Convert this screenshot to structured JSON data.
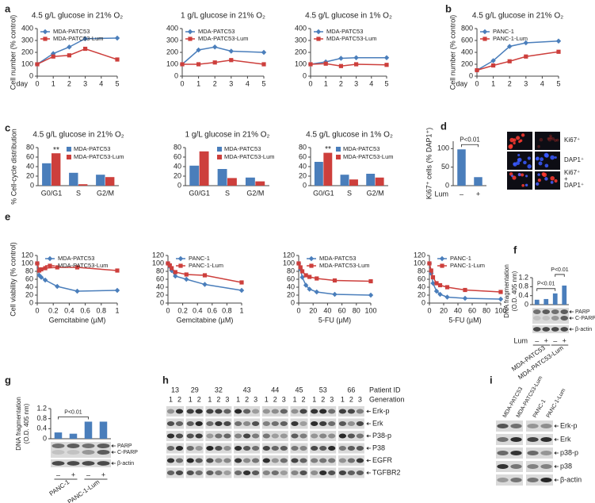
{
  "chart_data": [
    {
      "type": "line",
      "title": "4.5 g/L glucose in 21% O₂",
      "y_label": "Cell number (% control)",
      "x_label": "day",
      "x": [
        0,
        1,
        2,
        3,
        5
      ],
      "xlim": [
        0,
        5
      ],
      "xticks": [
        0,
        1,
        2,
        3,
        4,
        5
      ],
      "ylim": [
        0,
        400
      ],
      "yticks": [
        0,
        100,
        200,
        300,
        400
      ],
      "legend": "upper left",
      "series": [
        {
          "name": "MDA-PATC53",
          "color": "#4a7ebb",
          "values": [
            100,
            190,
            245,
            315,
            320
          ]
        },
        {
          "name": "MDA-PATC53-Lum",
          "color": "#cd3f3c",
          "values": [
            100,
            165,
            175,
            230,
            140
          ]
        }
      ]
    },
    {
      "type": "line",
      "title": "1 g/L glucose in 21% O₂",
      "x": [
        0,
        1,
        2,
        3,
        5
      ],
      "xlim": [
        0,
        5
      ],
      "xticks": [
        0,
        1,
        2,
        3,
        4,
        5
      ],
      "ylim": [
        0,
        400
      ],
      "yticks": [
        0,
        100,
        200,
        300,
        400
      ],
      "legend": "upper left",
      "series": [
        {
          "name": "MDA-PATC53",
          "color": "#4a7ebb",
          "values": [
            100,
            220,
            245,
            210,
            200
          ]
        },
        {
          "name": "MDA-PATC53-Lum",
          "color": "#cd3f3c",
          "values": [
            100,
            100,
            115,
            135,
            100
          ]
        }
      ]
    },
    {
      "type": "line",
      "title": "4.5 g/L glucose in 1% O₂",
      "x": [
        0,
        1,
        2,
        3,
        5
      ],
      "xlim": [
        0,
        5
      ],
      "xticks": [
        0,
        1,
        2,
        3,
        4,
        5
      ],
      "ylim": [
        0,
        400
      ],
      "yticks": [
        0,
        100,
        200,
        300,
        400
      ],
      "legend": "upper left",
      "series": [
        {
          "name": "MDA-PATC53",
          "color": "#4a7ebb",
          "values": [
            100,
            120,
            150,
            155,
            155
          ]
        },
        {
          "name": "MDA-PATC53-Lum",
          "color": "#cd3f3c",
          "values": [
            100,
            105,
            85,
            100,
            95
          ]
        }
      ]
    },
    {
      "type": "line",
      "title": "4.5 g/L glucose in 21% O₂",
      "y_label": "Cell number (% control)",
      "x_label": "day",
      "x": [
        0,
        1,
        2,
        3,
        5
      ],
      "xlim": [
        0,
        5
      ],
      "xticks": [
        0,
        1,
        2,
        3,
        4,
        5
      ],
      "ylim": [
        0,
        800
      ],
      "yticks": [
        0,
        200,
        400,
        600,
        800
      ],
      "legend": "upper left",
      "series": [
        {
          "name": "PANC-1",
          "color": "#4a7ebb",
          "values": [
            100,
            260,
            500,
            560,
            590
          ]
        },
        {
          "name": "PANC-1-Lum",
          "color": "#cd3f3c",
          "values": [
            100,
            180,
            250,
            330,
            410
          ]
        }
      ]
    },
    {
      "type": "bar",
      "title": "4.5 g/L glucose in 21% O₂",
      "y_label": "% Cell-cycle distribution",
      "categories": [
        "G0/G1",
        "S",
        "G2/M"
      ],
      "ylim": [
        0,
        80
      ],
      "yticks": [
        0,
        20,
        40,
        60,
        80
      ],
      "legend": "upper right",
      "annotations": [
        "**"
      ],
      "series": [
        {
          "name": "MDA-PATC53",
          "color": "#4a7ebb",
          "values": [
            47,
            27,
            23
          ]
        },
        {
          "name": "MDA-PATC53-Lum",
          "color": "#cd3f3c",
          "values": [
            68,
            3,
            18
          ]
        }
      ]
    },
    {
      "type": "bar",
      "title": "1 g/L glucose in 21% O₂",
      "categories": [
        "G0/G1",
        "S",
        "G2/M"
      ],
      "ylim": [
        0,
        80
      ],
      "yticks": [
        0,
        20,
        40,
        60,
        80
      ],
      "legend": "upper right",
      "series": [
        {
          "name": "MDA-PATC53",
          "color": "#4a7ebb",
          "values": [
            42,
            35,
            17
          ]
        },
        {
          "name": "MDA-PATC53-Lum",
          "color": "#cd3f3c",
          "values": [
            72,
            16,
            9
          ]
        }
      ]
    },
    {
      "type": "bar",
      "title": "4.5 g/L glucose in 1% O₂",
      "categories": [
        "G0/G1",
        "S",
        "G2/M"
      ],
      "ylim": [
        0,
        80
      ],
      "yticks": [
        0,
        20,
        40,
        60,
        80
      ],
      "legend": "upper right",
      "annotations": [
        "**"
      ],
      "series": [
        {
          "name": "MDA-PATC53",
          "color": "#4a7ebb",
          "values": [
            50,
            23,
            25
          ]
        },
        {
          "name": "MDA-PATC53-Lum",
          "color": "#cd3f3c",
          "values": [
            69,
            13,
            17
          ]
        }
      ]
    },
    {
      "type": "bar",
      "y_label": "Ki67⁺ cells (% DAP1⁺)",
      "categories": [
        "–",
        "+"
      ],
      "x_label": "Lum",
      "values": [
        98,
        23
      ],
      "color": "#4a7ebb",
      "ylim": [
        0,
        120
      ],
      "yticks": [
        0,
        50,
        100
      ],
      "annotations": [
        "P<0.01"
      ],
      "image_labels": [
        [
          "Ki67⁺"
        ],
        [
          "DAP1⁺"
        ],
        [
          "Ki67⁺",
          "+",
          "DAP1⁺"
        ]
      ]
    },
    {
      "type": "line",
      "y_label": "Cell viability (% control)",
      "x_label": "Gemcitabine (µM)",
      "x": [
        0,
        0.025,
        0.05,
        0.1,
        0.25,
        0.5,
        1
      ],
      "xlim": [
        0,
        1
      ],
      "xticks": [
        0,
        0.2,
        0.4,
        0.6,
        0.8,
        1
      ],
      "ylim": [
        0,
        120
      ],
      "yticks": [
        0,
        20,
        40,
        60,
        80,
        100,
        120
      ],
      "legend": "upper center",
      "series": [
        {
          "name": "MDA-PATC53",
          "color": "#4a7ebb",
          "values": [
            100,
            70,
            65,
            58,
            42,
            30,
            32
          ]
        },
        {
          "name": "MDA-PATC53-Lum",
          "color": "#cd3f3c",
          "values": [
            100,
            82,
            85,
            88,
            90,
            90,
            82
          ]
        }
      ]
    },
    {
      "type": "line",
      "x_label": "Gemcitabine (µM)",
      "x": [
        0,
        0.025,
        0.05,
        0.1,
        0.25,
        0.5,
        1
      ],
      "xlim": [
        0,
        1
      ],
      "xticks": [
        0,
        0.2,
        0.4,
        0.6,
        0.8,
        1
      ],
      "ylim": [
        0,
        120
      ],
      "yticks": [
        0,
        20,
        40,
        60,
        80,
        100,
        120
      ],
      "legend": "upper center",
      "series": [
        {
          "name": "PANC-1",
          "color": "#4a7ebb",
          "values": [
            100,
            92,
            82,
            68,
            60,
            47,
            32
          ]
        },
        {
          "name": "PANC-1-Lum",
          "color": "#cd3f3c",
          "values": [
            100,
            95,
            88,
            78,
            72,
            70,
            52
          ]
        }
      ]
    },
    {
      "type": "line",
      "x_label": "5-FU (µM)",
      "x": [
        0,
        2.5,
        5,
        10,
        15,
        25,
        50,
        100
      ],
      "xlim": [
        0,
        100
      ],
      "xticks": [
        0,
        20,
        40,
        60,
        80,
        100
      ],
      "ylim": [
        0,
        120
      ],
      "yticks": [
        0,
        20,
        40,
        60,
        80,
        100,
        120
      ],
      "legend": "upper center",
      "series": [
        {
          "name": "MDA-PATC53",
          "color": "#4a7ebb",
          "values": [
            100,
            85,
            65,
            45,
            35,
            28,
            22,
            20
          ]
        },
        {
          "name": "MDA-PATC53-Lum",
          "color": "#cd3f3c",
          "values": [
            100,
            90,
            80,
            70,
            66,
            62,
            57,
            55
          ]
        }
      ]
    },
    {
      "type": "line",
      "x_label": "5-FU (µM)",
      "x": [
        0,
        2.5,
        5,
        10,
        15,
        25,
        50,
        100
      ],
      "xlim": [
        0,
        100
      ],
      "xticks": [
        0,
        20,
        40,
        60,
        80,
        100
      ],
      "ylim": [
        0,
        120
      ],
      "yticks": [
        0,
        20,
        40,
        60,
        80,
        100,
        120
      ],
      "legend": "upper center",
      "series": [
        {
          "name": "PANC-1",
          "color": "#4a7ebb",
          "values": [
            100,
            75,
            50,
            30,
            22,
            15,
            12,
            10
          ]
        },
        {
          "name": "PANC-1-Lum",
          "color": "#cd3f3c",
          "values": [
            100,
            82,
            65,
            50,
            45,
            40,
            33,
            28
          ]
        }
      ]
    },
    {
      "type": "bar",
      "y_label": [
        "DNA fragmentation",
        "(O.D. 405 nm)"
      ],
      "categories": [
        "–",
        "+",
        "–",
        "+"
      ],
      "x_label": "Lum",
      "values": [
        0.22,
        0.25,
        0.5,
        0.85
      ],
      "color": "#4a7ebb",
      "ylim": [
        0,
        1.2
      ],
      "yticks": [
        0,
        0.4,
        0.8,
        1.2
      ],
      "annotations": [
        "P<0.01",
        "P<0.01"
      ],
      "blot_labels": [
        "PARP",
        "C-PARP",
        "β-actin"
      ],
      "groups": [
        "MDA-PATC53",
        "MDA-PATC53-Lum"
      ]
    },
    {
      "type": "bar",
      "y_label": [
        "DNA fragmentation",
        "(O.D. 405 nm)"
      ],
      "categories": [
        "–",
        "+",
        "–",
        "+"
      ],
      "values": [
        0.25,
        0.2,
        0.68,
        0.68
      ],
      "color": "#4a7ebb",
      "ylim": [
        0,
        1.2
      ],
      "yticks": [
        0,
        0.4,
        0.8,
        1.2
      ],
      "annotations": [
        "P<0.01"
      ],
      "blot_labels": [
        "PARP",
        "C-PARP",
        "β-actin"
      ],
      "groups": [
        "PANC-1",
        "PANC-1-Lum"
      ]
    }
  ],
  "panel_labels": [
    "a",
    "b",
    "c",
    "d",
    "e",
    "f",
    "g",
    "h",
    "i"
  ],
  "blots_h": {
    "patient_id_label": "Patient ID",
    "generation_label": "Generation",
    "patients": [
      {
        "id": "13",
        "generations": [
          "1",
          "2"
        ]
      },
      {
        "id": "29",
        "generations": [
          "1",
          "2"
        ]
      },
      {
        "id": "32",
        "generations": [
          "1",
          "2",
          "3"
        ]
      },
      {
        "id": "43",
        "generations": [
          "1",
          "2",
          "3"
        ]
      },
      {
        "id": "44",
        "generations": [
          "1",
          "2",
          "3"
        ]
      },
      {
        "id": "45",
        "generations": [
          "1",
          "2"
        ]
      },
      {
        "id": "53",
        "generations": [
          "1",
          "2",
          "3"
        ]
      },
      {
        "id": "66",
        "generations": [
          "1",
          "2",
          "3"
        ]
      }
    ],
    "rows": [
      "Erk-p",
      "Erk",
      "P38-p",
      "P38",
      "EGFR",
      "TGFBR2"
    ]
  },
  "blots_i": {
    "columns": [
      "MDA-PATC53",
      "MDA-PATC53-Lum",
      "PANC-1",
      "PANC-1-Lum"
    ],
    "rows": [
      "Erk-p",
      "Erk",
      "p38-p",
      "p38",
      "β-actin"
    ]
  }
}
